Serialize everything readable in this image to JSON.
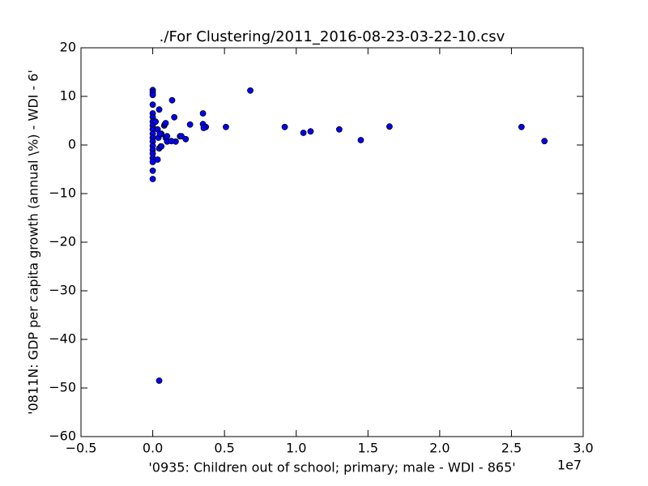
{
  "chart_data": {
    "type": "scatter",
    "title": "./For Clustering/2011_2016-08-23-03-22-10.csv",
    "x_label": "'0935: Children out of school; primary; male - WDI - 865'",
    "y_label": "'0811N: GDP per capita growth  (annual \\%) - WDI - 6'",
    "x_offset_label": "1e7",
    "color": "#0000ff",
    "x": [
      0,
      0,
      0,
      0,
      0,
      0,
      0,
      0,
      0,
      0,
      0,
      0,
      0,
      0,
      0,
      0,
      0,
      0,
      0,
      0.034,
      0.02,
      0.04,
      0.045,
      0.045,
      0.045,
      0.034,
      0.06,
      0.08,
      0.085,
      0.056,
      0.135,
      0.15,
      0.09,
      0.09,
      0.06,
      0.16,
      0.19,
      0.2,
      0.23,
      0.26,
      0.35,
      0.35,
      0.37,
      0.355,
      0.51,
      0.68,
      0.92,
      1.05,
      1.1,
      1.3,
      1.45,
      1.65,
      2.57,
      2.73,
      0.1,
      0.13,
      0.1,
      0.05
    ],
    "y": [
      11.3,
      10.8,
      10.3,
      8.3,
      6.5,
      5.7,
      4.8,
      4,
      3.2,
      2.3,
      1.5,
      0.7,
      -0.2,
      -1,
      -1.8,
      -2.7,
      -3.5,
      -5.3,
      -7,
      3.2,
      4.8,
      1.5,
      -0.7,
      -48.5,
      7.3,
      -3,
      2.3,
      4,
      4.3,
      -0.3,
      9.2,
      5.7,
      4.5,
      1.5,
      -0.3,
      0.7,
      1.8,
      1.8,
      1.2,
      4.2,
      6.5,
      4.3,
      3.7,
      3.5,
      3.7,
      11.2,
      3.7,
      2.5,
      2.8,
      3.2,
      1,
      3.8,
      3.7,
      0.8,
      0.7,
      0.8,
      1.8,
      2.3
    ],
    "xlim": [
      -0.5,
      3.0
    ],
    "ylim": [
      -60,
      20
    ],
    "xticks": [
      {
        "value": -0.5,
        "label": "−0.5"
      },
      {
        "value": 0,
        "label": "0.0"
      },
      0.5,
      {
        "value": 1,
        "label": "1.0"
      },
      1.5,
      {
        "value": 2,
        "label": "2.0"
      },
      2.5,
      {
        "value": 3,
        "label": "3.0"
      }
    ],
    "yticks": [
      20,
      10,
      0,
      {
        "value": -10,
        "label": "−10"
      },
      {
        "value": -20,
        "label": "−20"
      },
      {
        "value": -30,
        "label": "−30"
      },
      {
        "value": -40,
        "label": "−40"
      },
      {
        "value": -50,
        "label": "−50"
      },
      {
        "value": -60,
        "label": "−60"
      }
    ]
  }
}
